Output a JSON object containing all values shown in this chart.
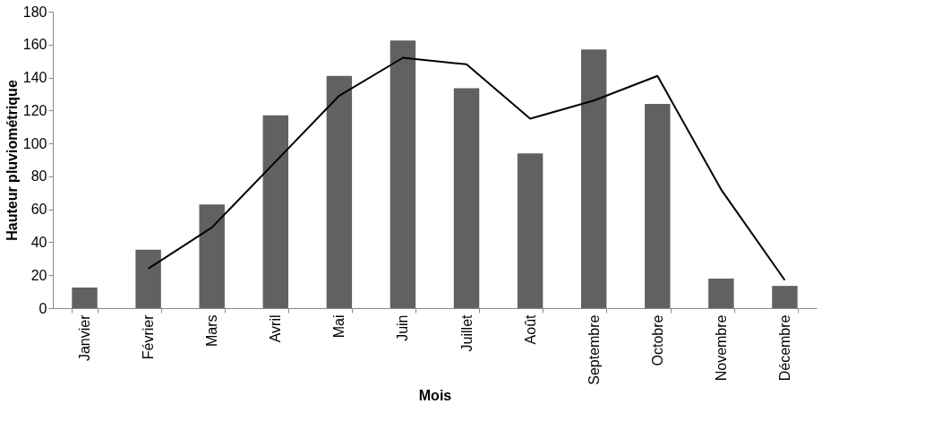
{
  "chart_data": {
    "type": "bar",
    "xlabel": "Mois",
    "ylabel": "Hauteur pluviométrique",
    "categories": [
      "Janvier",
      "Février",
      "Mars",
      "Avril",
      "Mai",
      "Juin",
      "Juillet",
      "Août",
      "Septembre",
      "Octobre",
      "Novembre",
      "Décembre"
    ],
    "series": [
      {
        "color": "#616161",
        "values": [
          12.5,
          35.5,
          63,
          117,
          141,
          162.5,
          133.5,
          94,
          157,
          124,
          18,
          13.5
        ]
      },
      {
        "type": "line",
        "color": "#000000",
        "values": [
          null,
          24,
          49,
          89,
          129,
          152,
          148,
          115,
          126,
          141,
          72,
          17
        ]
      }
    ],
    "ylim": [
      0,
      180
    ],
    "yticks": [
      0,
      20,
      40,
      60,
      80,
      100,
      120,
      140,
      160,
      180
    ],
    "grid": false,
    "marker": "none",
    "line_style": "solid"
  }
}
